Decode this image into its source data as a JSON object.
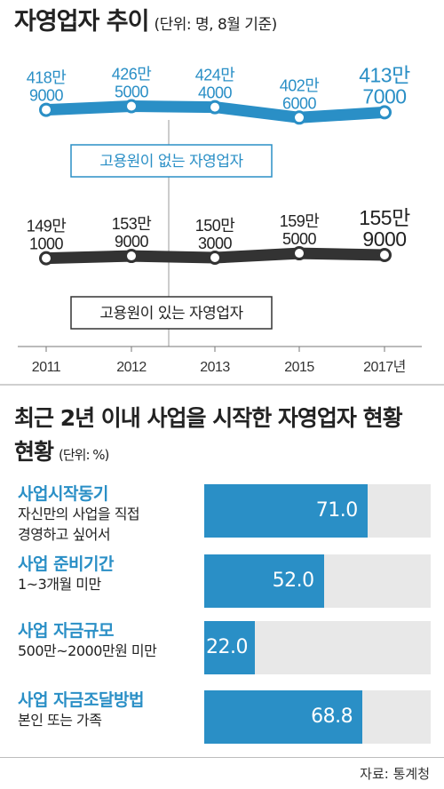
{
  "chart_data": [
    {
      "type": "line",
      "title": "자영업자 추이",
      "unit_note": "(단위: 명, 8월 기준)",
      "categories": [
        "2011",
        "2012",
        "2013",
        "2015",
        "2017년"
      ],
      "series": [
        {
          "name": "고용원이 없는 자영업자",
          "values": [
            4189000,
            4265000,
            4244000,
            4026000,
            4137000
          ],
          "labels": [
            [
              "418만",
              "9000"
            ],
            [
              "426만",
              "5000"
            ],
            [
              "424만",
              "4000"
            ],
            [
              "402만",
              "6000"
            ],
            [
              "413만",
              "7000"
            ]
          ],
          "color": "#2a8fc6"
        },
        {
          "name": "고용원이 있는 자영업자",
          "values": [
            1491000,
            1539000,
            1503000,
            1595000,
            1559000
          ],
          "labels": [
            [
              "149만",
              "1000"
            ],
            [
              "153만",
              "9000"
            ],
            [
              "150만",
              "3000"
            ],
            [
              "159만",
              "5000"
            ],
            [
              "155만",
              "9000"
            ]
          ],
          "color": "#333333"
        }
      ],
      "legend_placement": "below each series line"
    },
    {
      "type": "bar",
      "title": "최근 2년 이내 사업을 시작한 자영업자 현황",
      "unit_note": "(단위: %)",
      "xlim": [
        0,
        100
      ],
      "items": [
        {
          "category": "사업시작동기",
          "description": [
            "자신만의 사업을 직접",
            "경영하고 싶어서"
          ],
          "value": 71.0,
          "label": "71.0"
        },
        {
          "category": "사업 준비기간",
          "description": [
            "1~3개월 미만"
          ],
          "value": 52.0,
          "label": "52.0"
        },
        {
          "category": "사업 자금규모",
          "description": [
            "500만~2000만원 미만"
          ],
          "value": 22.0,
          "label": "22.0"
        },
        {
          "category": "사업 자금조달방법",
          "description": [
            "본인 또는 가족"
          ],
          "value": 68.8,
          "label": "68.8"
        }
      ]
    }
  ],
  "source": "자료: 통계청",
  "colors": {
    "accent": "#2a8fc6",
    "dark": "#333333",
    "track": "#e8e8e8"
  }
}
